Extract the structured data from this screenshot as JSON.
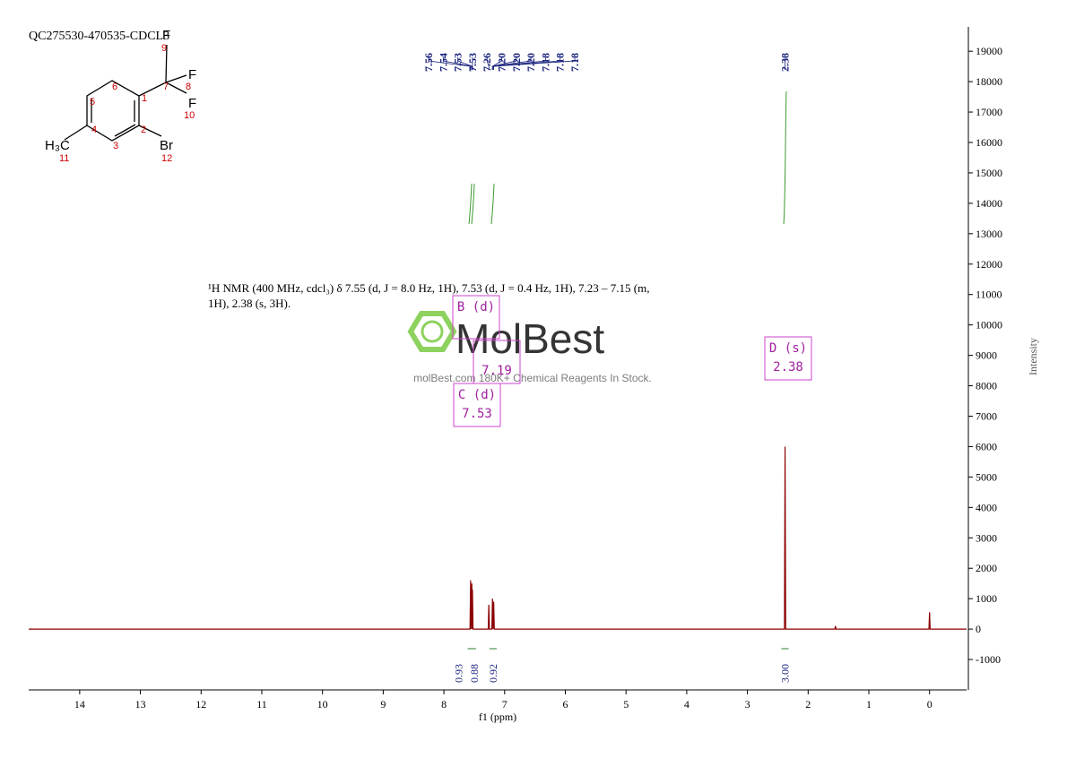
{
  "chart_data": {
    "type": "line",
    "title": "QC275530-470535-CDCL3",
    "xlabel": "f1 (ppm)",
    "ylabel": "Intensity",
    "description": [
      "¹H NMR (400 MHz, cdcl₃) δ 7.55 (d, J = 8.0 Hz, 1H), 7.53 (d, J = 0.4 Hz, 1H), 7.23 – 7.15 (m,",
      "1H), 2.38 (s, 3H)."
    ],
    "watermark": {
      "logo": "MolBest",
      "tagline": "molBest.com 180K+ Chemical Reagents In Stock."
    },
    "structure": {
      "atoms": [
        "F",
        "9",
        "F",
        "8",
        "7",
        "F",
        "10",
        "6",
        "1",
        "5",
        "4",
        "2",
        "3",
        "H₃C",
        "11",
        "Br",
        "12"
      ]
    },
    "peak_labels": [
      "7.56",
      "7.54",
      "7.53",
      "7.53",
      "7.26",
      "7.20",
      "7.20",
      "7.20",
      "7.18",
      "7.18",
      "7.18",
      "2.38"
    ],
    "integrals": [
      {
        "x": 7.55,
        "label": "0.93"
      },
      {
        "x": 7.53,
        "label": "0.88"
      },
      {
        "x": 7.19,
        "label": "0.92"
      },
      {
        "x": 2.38,
        "label": "3.00"
      }
    ],
    "multiplets": [
      {
        "label": "B (d)"
      },
      {
        "shift": 7.19
      },
      {
        "label": "C (d)",
        "shift": 7.53
      },
      {
        "label": "D (s)",
        "shift": 2.38
      }
    ],
    "series": [
      {
        "name": "spectrum",
        "color": "#8b0000",
        "x": [
          14.84,
          7.57,
          7.56,
          7.555,
          7.54,
          7.535,
          7.53,
          7.52,
          7.27,
          7.26,
          7.25,
          7.21,
          7.2,
          7.19,
          7.18,
          7.17,
          2.39,
          2.38,
          2.37,
          1.56,
          1.55,
          1.54,
          0.01,
          0,
          -0.01,
          -0.61
        ],
        "values": [
          0,
          0,
          1600,
          0,
          1500,
          0,
          1300,
          0,
          0,
          800,
          0,
          0,
          1000,
          0,
          900,
          0,
          0,
          6000,
          0,
          0,
          100,
          0,
          0,
          550,
          0,
          0
        ]
      }
    ],
    "xlim": [
      14.84,
      -0.61
    ],
    "ylim": [
      -2000,
      19800
    ],
    "xticks": [
      14,
      13,
      12,
      11,
      10,
      9,
      8,
      7,
      6,
      5,
      4,
      3,
      2,
      1,
      0
    ],
    "yticks": [
      -1000,
      0,
      1000,
      2000,
      3000,
      4000,
      5000,
      6000,
      7000,
      8000,
      9000,
      10000,
      11000,
      12000,
      13000,
      14000,
      15000,
      16000,
      17000,
      18000,
      19000
    ]
  }
}
